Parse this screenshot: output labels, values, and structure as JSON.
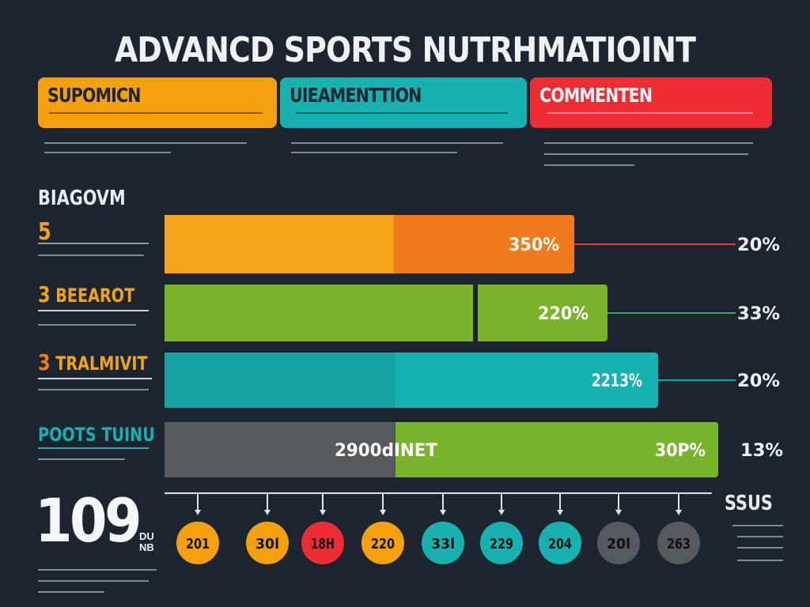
{
  "title": "ADVANCD SPORTS NUTRHMATIOINT",
  "cards": [
    {
      "label": "SUPOMICN",
      "color": "#f5a10f",
      "text_color": "#1c2530"
    },
    {
      "label": "UIEAMENTTION",
      "color": "#17b1b0",
      "text_color": "#1c2530"
    },
    {
      "label": "COMMENTEN",
      "color": "#ee2c33",
      "text_color": "#f5f7f8"
    }
  ],
  "section_heading": "BIAGOVM",
  "rows": [
    {
      "number": "5",
      "label": "",
      "color": "#c6d31b"
    },
    {
      "number": "3",
      "label": "BEEAROT",
      "color": "#f2a415"
    },
    {
      "number": "3",
      "label": "TRALMIVIT",
      "color": "#f47a1a"
    },
    {
      "number": "",
      "label": "POOTS TUINU",
      "color": "#17b1b0"
    }
  ],
  "chart_data": {
    "type": "bar",
    "orientation": "horizontal",
    "bars": [
      {
        "segments": [
          {
            "color": "#f5a31a"
          },
          {
            "color": "#f07b1c"
          }
        ],
        "inner_label": "350%",
        "end_label": "20%",
        "leader_color": "#e0413b"
      },
      {
        "segments": [
          {
            "color": "#7cb22a"
          },
          {
            "color": "#7cb22a"
          }
        ],
        "inner_label": "220%",
        "end_label": "33%",
        "leader_color": "#4c9a3a"
      },
      {
        "segments": [
          {
            "color": "#16a4a5"
          },
          {
            "color": "#16b2b2"
          }
        ],
        "inner_label": "2213%",
        "end_label": "20%",
        "leader_color": "#1aa6a6"
      },
      {
        "segments": [
          {
            "color": "#56595d"
          },
          {
            "color": "#79b52b"
          }
        ],
        "inner_label": "30P%",
        "mid_label": "2900dINET",
        "end_label": "13%",
        "leader_color": ""
      }
    ],
    "timeline_label": "SSUS",
    "markers": [
      {
        "label": "201",
        "color": "#f5a10f"
      },
      {
        "label": "30l",
        "color": "#f5a10f"
      },
      {
        "label": "18H",
        "color": "#ee2c33"
      },
      {
        "label": "220",
        "color": "#f5a10f"
      },
      {
        "label": "33l",
        "color": "#17b1b0"
      },
      {
        "label": "229",
        "color": "#17b1b0"
      },
      {
        "label": "204",
        "color": "#17b1b0"
      },
      {
        "label": "20l",
        "color": "#56595d"
      },
      {
        "label": "263",
        "color": "#56595d"
      }
    ]
  },
  "big_stat": {
    "value": "109",
    "unit": "DU NB"
  }
}
